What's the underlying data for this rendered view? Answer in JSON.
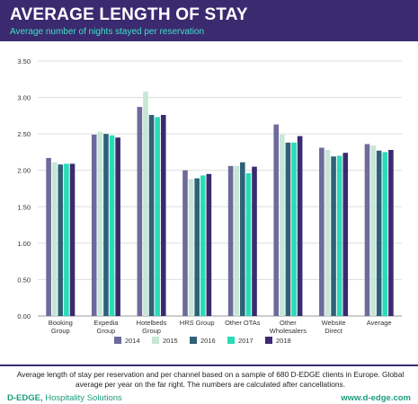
{
  "header": {
    "title": "AVERAGE LENGTH OF STAY",
    "subtitle": "Average number of nights stayed per reservation"
  },
  "chart_data": {
    "type": "bar",
    "categories": [
      [
        "Booking",
        "Group"
      ],
      [
        "Expedia",
        "Group"
      ],
      [
        "Hotelbeds",
        "Group"
      ],
      [
        "HRS Group"
      ],
      [
        "Other OTAs"
      ],
      [
        "Other",
        "Wholesalers"
      ],
      [
        "Website",
        "Direct"
      ],
      [
        "Average"
      ]
    ],
    "series": [
      {
        "name": "2014",
        "color": "#6d6a9c",
        "values": [
          2.17,
          2.49,
          2.87,
          2.0,
          2.06,
          2.63,
          2.31,
          2.36
        ]
      },
      {
        "name": "2015",
        "color": "#c6e6d6",
        "values": [
          2.11,
          2.53,
          3.08,
          1.88,
          2.06,
          2.49,
          2.28,
          2.34
        ]
      },
      {
        "name": "2016",
        "color": "#2f6178",
        "values": [
          2.08,
          2.5,
          2.76,
          1.89,
          2.11,
          2.38,
          2.19,
          2.27
        ]
      },
      {
        "name": "2017",
        "color": "#28dcb8",
        "values": [
          2.09,
          2.48,
          2.73,
          1.93,
          1.96,
          2.38,
          2.2,
          2.25
        ]
      },
      {
        "name": "2018",
        "color": "#3b2a70",
        "values": [
          2.09,
          2.45,
          2.76,
          1.95,
          2.05,
          2.47,
          2.24,
          2.28
        ]
      }
    ],
    "ylim": [
      0,
      3.5
    ],
    "yticks": [
      "0.00",
      "0.50",
      "1.00",
      "1.50",
      "2.00",
      "2.50",
      "3.00",
      "3.50"
    ],
    "grid": true,
    "legend": "bottom"
  },
  "footer": {
    "note": "Average length of stay per reservation and per channel based on a sample of 680 D-EDGE clients in Europe. Global average per year on the far right. The numbers are calculated after cancellations.",
    "brand_name": "D-EDGE,",
    "brand_tagline": " Hospitality Solutions",
    "url": "www.d-edge.com"
  }
}
